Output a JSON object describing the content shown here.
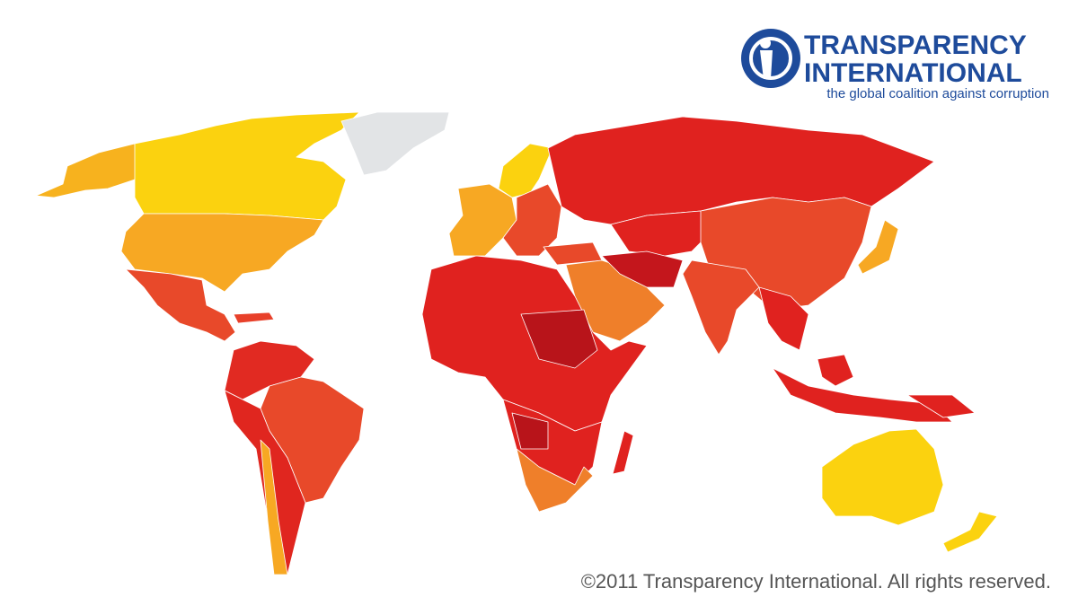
{
  "logo": {
    "name_line1": "TRANSPARENCY",
    "name_line2": "INTERNATIONAL",
    "tagline": "the global coalition against corruption"
  },
  "copyright": "©2011 Transparency International. All rights reserved."
}
